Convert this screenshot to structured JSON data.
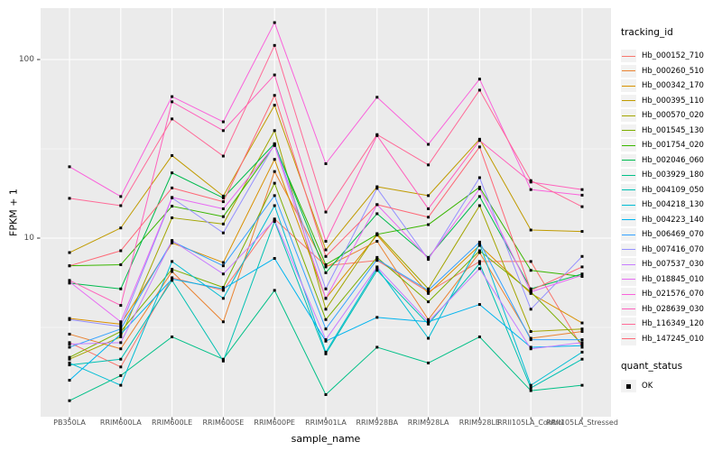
{
  "chart_data": {
    "type": "line",
    "xlabel": "sample_name",
    "ylabel": "FPKM + 1",
    "y_scale": "log10",
    "ylim": [
      1,
      194
    ],
    "grid": true,
    "panel_bg": "#EBEBEB",
    "gridline_color": "#FFFFFF",
    "point_color": "#000000",
    "point_shape": "square",
    "legend_position": "right",
    "legend_title": "tracking_id",
    "quant_status": {
      "title": "quant_status",
      "items": [
        {
          "label": "OK",
          "marker": "black-square"
        }
      ]
    },
    "y_ticks": [
      {
        "value": 100,
        "label": "100"
      },
      {
        "value": 10,
        "label": "10"
      }
    ],
    "y_minor_ticks": [
      31.623,
      3.1623
    ],
    "categories": [
      "PB350LA",
      "RRIM600LA",
      "RRIM600LE",
      "RRIM600SE",
      "RRIM600PE",
      "RRIM901LA",
      "RRIM928BA",
      "RRIM928LA",
      "RRIM928LE",
      "RRII105LA_Control",
      "RRII105LA_Stressed"
    ],
    "series": [
      {
        "name": "Hb_000152_710",
        "color": "#F8766D",
        "values": [
          2.6,
          1.9,
          6.0,
          5.1,
          12.8,
          7.0,
          7.5,
          5.0,
          7.4,
          7.4,
          2.45
        ]
      },
      {
        "name": "Hb_000260_510",
        "color": "#EA8331",
        "values": [
          2.9,
          2.4,
          6.5,
          3.4,
          23.6,
          6.9,
          9.6,
          3.5,
          8.3,
          2.75,
          3.0
        ]
      },
      {
        "name": "Hb_000342_170",
        "color": "#D89000",
        "values": [
          3.55,
          3.3,
          9.4,
          7.3,
          27.6,
          4.6,
          10.4,
          4.9,
          9.1,
          4.9,
          3.35
        ]
      },
      {
        "name": "Hb_000395_110",
        "color": "#C09B00",
        "values": [
          8.3,
          11.4,
          29.0,
          17.2,
          55.5,
          8.6,
          19.4,
          17.3,
          35.8,
          11.1,
          10.9
        ]
      },
      {
        "name": "Hb_000570_020",
        "color": "#A3A500",
        "values": [
          2.1,
          2.8,
          13.0,
          12.0,
          40.0,
          4.0,
          10.6,
          5.2,
          15.2,
          3.0,
          3.1
        ]
      },
      {
        "name": "Hb_001545_130",
        "color": "#7CAE00",
        "values": [
          2.15,
          3.0,
          6.7,
          5.3,
          20.3,
          3.5,
          7.8,
          4.4,
          8.5,
          5.0,
          2.55
        ]
      },
      {
        "name": "Hb_001754_020",
        "color": "#39B600",
        "values": [
          7.0,
          7.1,
          15.1,
          13.2,
          33.2,
          7.1,
          10.5,
          11.9,
          19.3,
          6.6,
          6.1
        ]
      },
      {
        "name": "Hb_002046_060",
        "color": "#00BB4E",
        "values": [
          5.6,
          5.2,
          23.2,
          16.8,
          33.8,
          6.4,
          13.7,
          7.8,
          17.1,
          5.2,
          6.3
        ]
      },
      {
        "name": "Hb_003929_180",
        "color": "#00C087",
        "values": [
          1.23,
          1.7,
          2.8,
          2.1,
          5.1,
          1.33,
          2.45,
          2.0,
          2.8,
          1.4,
          1.5
        ]
      },
      {
        "name": "Hb_004109_050",
        "color": "#00C0B2",
        "values": [
          1.95,
          2.1,
          5.8,
          2.05,
          12.4,
          2.25,
          6.6,
          3.3,
          7.2,
          1.45,
          2.1
        ]
      },
      {
        "name": "Hb_004218_130",
        "color": "#00BDD4",
        "values": [
          2.0,
          1.5,
          7.4,
          4.6,
          15.2,
          2.3,
          6.8,
          2.75,
          9.3,
          1.5,
          2.3
        ]
      },
      {
        "name": "Hb_004223_140",
        "color": "#00B4EF",
        "values": [
          1.6,
          2.9,
          5.9,
          5.2,
          7.7,
          2.65,
          3.6,
          3.4,
          4.25,
          2.45,
          2.5
        ]
      },
      {
        "name": "Hb_006469_070",
        "color": "#35A2FF",
        "values": [
          2.45,
          3.1,
          9.6,
          7.0,
          17.3,
          3.1,
          7.6,
          5.1,
          9.5,
          2.7,
          2.7
        ]
      },
      {
        "name": "Hb_007416_070",
        "color": "#9590FF",
        "values": [
          3.5,
          3.2,
          16.8,
          10.7,
          33.5,
          5.2,
          19.0,
          7.6,
          21.8,
          4.0,
          7.9
        ]
      },
      {
        "name": "Hb_007537_030",
        "color": "#C77CFF",
        "values": [
          2.55,
          2.6,
          9.7,
          6.3,
          12.6,
          2.7,
          6.9,
          3.4,
          6.75,
          2.4,
          2.6
        ]
      },
      {
        "name": "Hb_018845_010",
        "color": "#E76BF3",
        "values": [
          5.7,
          3.4,
          16.9,
          14.6,
          33.0,
          4.6,
          15.4,
          7.7,
          18.9,
          5.0,
          6.2
        ]
      },
      {
        "name": "Hb_021576_070",
        "color": "#FA62DB",
        "values": [
          25.1,
          17.1,
          62.0,
          44.8,
          161.0,
          26.1,
          61.5,
          33.5,
          77.7,
          18.7,
          17.4
        ]
      },
      {
        "name": "Hb_028639_030",
        "color": "#FF62BC",
        "values": [
          5.8,
          4.2,
          58.0,
          40.0,
          82.0,
          9.6,
          37.5,
          14.6,
          35.2,
          20.6,
          18.7
        ]
      },
      {
        "name": "Hb_116349_120",
        "color": "#FF6A98",
        "values": [
          16.7,
          15.2,
          46.5,
          28.8,
          120.0,
          14.0,
          38.0,
          25.7,
          67.4,
          21.0,
          15.0
        ]
      },
      {
        "name": "Hb_147245_010",
        "color": "#FE6876",
        "values": [
          7.0,
          8.5,
          19.1,
          16.0,
          63.0,
          7.9,
          15.4,
          13.1,
          32.4,
          5.1,
          6.9
        ]
      }
    ]
  }
}
